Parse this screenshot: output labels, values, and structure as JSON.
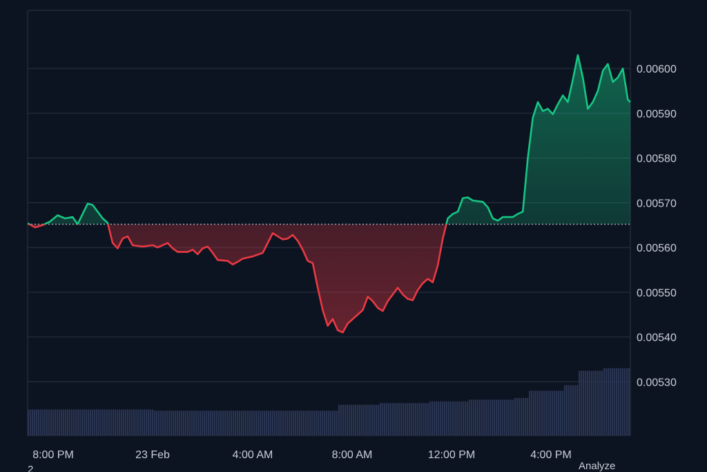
{
  "chart_data": {
    "type": "line",
    "y_ticks": [
      "0.00530",
      "0.00540",
      "0.00550",
      "0.00560",
      "0.00570",
      "0.00580",
      "0.00590",
      "0.00600"
    ],
    "x_ticks": [
      "8:00 PM",
      "23 Feb",
      "4:00 AM",
      "8:00 AM",
      "12:00 PM",
      "4:00 PM"
    ],
    "ylim": [
      0.00518,
      0.00613
    ],
    "baseline": 0.005652,
    "grid": true,
    "colors": {
      "up": "#16c784",
      "down": "#ea3943",
      "volume": "#2a3553",
      "baseline": "#9aa3b2"
    },
    "points": [
      [
        0,
        0.005654
      ],
      [
        3,
        0.005645
      ],
      [
        6,
        0.00565
      ],
      [
        9,
        0.005658
      ],
      [
        12,
        0.005672
      ],
      [
        15,
        0.005665
      ],
      [
        18,
        0.005668
      ],
      [
        20,
        0.005652
      ],
      [
        22,
        0.005675
      ],
      [
        24,
        0.005698
      ],
      [
        26,
        0.005695
      ],
      [
        28,
        0.00568
      ],
      [
        30,
        0.005665
      ],
      [
        32,
        0.005655
      ],
      [
        34,
        0.00561
      ],
      [
        36,
        0.005598
      ],
      [
        38,
        0.00562
      ],
      [
        40,
        0.005625
      ],
      [
        42,
        0.005605
      ],
      [
        46,
        0.005602
      ],
      [
        50,
        0.005605
      ],
      [
        52,
        0.0056
      ],
      [
        54,
        0.005605
      ],
      [
        56,
        0.00561
      ],
      [
        58,
        0.005598
      ],
      [
        60,
        0.00559
      ],
      [
        64,
        0.00559
      ],
      [
        66,
        0.005595
      ],
      [
        68,
        0.005585
      ],
      [
        70,
        0.005598
      ],
      [
        72,
        0.005602
      ],
      [
        74,
        0.005588
      ],
      [
        76,
        0.005572
      ],
      [
        80,
        0.00557
      ],
      [
        82,
        0.005562
      ],
      [
        84,
        0.005568
      ],
      [
        86,
        0.005575
      ],
      [
        90,
        0.00558
      ],
      [
        94,
        0.005588
      ],
      [
        96,
        0.00561
      ],
      [
        98,
        0.005632
      ],
      [
        100,
        0.005625
      ],
      [
        102,
        0.005618
      ],
      [
        104,
        0.00562
      ],
      [
        106,
        0.005628
      ],
      [
        108,
        0.005615
      ],
      [
        110,
        0.005595
      ],
      [
        112,
        0.00557
      ],
      [
        114,
        0.005565
      ],
      [
        116,
        0.00551
      ],
      [
        118,
        0.00546
      ],
      [
        120,
        0.005425
      ],
      [
        122,
        0.00544
      ],
      [
        124,
        0.005415
      ],
      [
        126,
        0.00541
      ],
      [
        128,
        0.00543
      ],
      [
        130,
        0.00544
      ],
      [
        132,
        0.00545
      ],
      [
        134,
        0.00546
      ],
      [
        136,
        0.00549
      ],
      [
        138,
        0.00548
      ],
      [
        140,
        0.005465
      ],
      [
        142,
        0.005458
      ],
      [
        144,
        0.00548
      ],
      [
        146,
        0.005495
      ],
      [
        148,
        0.00551
      ],
      [
        150,
        0.005495
      ],
      [
        152,
        0.005485
      ],
      [
        154,
        0.005482
      ],
      [
        156,
        0.005505
      ],
      [
        158,
        0.00552
      ],
      [
        160,
        0.00553
      ],
      [
        162,
        0.005522
      ],
      [
        164,
        0.00556
      ],
      [
        166,
        0.00562
      ],
      [
        168,
        0.005665
      ],
      [
        170,
        0.005675
      ],
      [
        172,
        0.00568
      ],
      [
        174,
        0.00571
      ],
      [
        176,
        0.005712
      ],
      [
        178,
        0.005705
      ],
      [
        182,
        0.005702
      ],
      [
        184,
        0.00569
      ],
      [
        186,
        0.005665
      ],
      [
        188,
        0.00566
      ],
      [
        190,
        0.005668
      ],
      [
        194,
        0.005668
      ],
      [
        196,
        0.005675
      ],
      [
        198,
        0.00568
      ],
      [
        200,
        0.0058
      ],
      [
        202,
        0.00589
      ],
      [
        204,
        0.005925
      ],
      [
        206,
        0.005905
      ],
      [
        208,
        0.00591
      ],
      [
        210,
        0.005898
      ],
      [
        212,
        0.00592
      ],
      [
        214,
        0.00594
      ],
      [
        216,
        0.005925
      ],
      [
        218,
        0.005975
      ],
      [
        220,
        0.00603
      ],
      [
        222,
        0.00598
      ],
      [
        224,
        0.00591
      ],
      [
        226,
        0.005925
      ],
      [
        228,
        0.00595
      ],
      [
        230,
        0.005995
      ],
      [
        232,
        0.00601
      ],
      [
        234,
        0.00597
      ],
      [
        236,
        0.00598
      ],
      [
        238,
        0.006
      ],
      [
        240,
        0.00593
      ],
      [
        241,
        0.005925
      ]
    ],
    "volume": [
      [
        0,
        0.061
      ],
      [
        50,
        0.058
      ],
      [
        110,
        0.058
      ],
      [
        124,
        0.072
      ],
      [
        140,
        0.076
      ],
      [
        160,
        0.08
      ],
      [
        176,
        0.084
      ],
      [
        194,
        0.088
      ],
      [
        200,
        0.105
      ],
      [
        214,
        0.118
      ],
      [
        220,
        0.152
      ],
      [
        230,
        0.158
      ],
      [
        241,
        0.17
      ]
    ]
  },
  "footer": {
    "left_text": "2",
    "right_text": "Analyze"
  }
}
